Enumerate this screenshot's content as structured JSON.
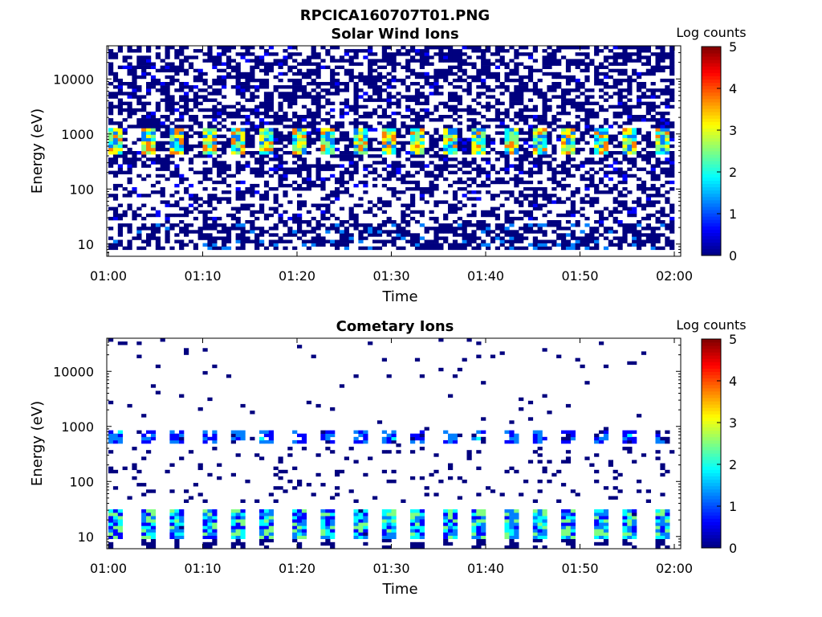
{
  "figure": {
    "title": "RPCICA160707T01.PNG"
  },
  "colormap": [
    "#00007f",
    "#0000ff",
    "#0080ff",
    "#00ffff",
    "#80ff80",
    "#ffff00",
    "#ff8000",
    "#ff0000",
    "#7f0000"
  ],
  "chart_data": [
    {
      "type": "heatmap",
      "title": "Solar Wind Ions",
      "xlabel": "Time",
      "ylabel": "Energy (eV)",
      "x_ticks": [
        "01:00",
        "01:10",
        "01:20",
        "01:30",
        "01:40",
        "01:50",
        "02:00"
      ],
      "x_range": [
        "01:00",
        "02:00"
      ],
      "y_ticks": [
        "10",
        "100",
        "1000",
        "10000"
      ],
      "y_scale": "log",
      "y_range": [
        6,
        40000
      ],
      "colorbar": {
        "label": "Log counts",
        "range": [
          0,
          5
        ],
        "ticks": [
          "0",
          "1",
          "2",
          "3",
          "4",
          "5"
        ]
      },
      "features": {
        "beam_energy_eV": [
          600,
          1200
        ],
        "beam_peak_log_counts": 3,
        "beam_period_min": 3.2,
        "background_log_counts": 0,
        "low_energy_band_eV": [
          8,
          25
        ]
      }
    },
    {
      "type": "heatmap",
      "title": "Cometary Ions",
      "xlabel": "Time",
      "ylabel": "Energy (eV)",
      "x_ticks": [
        "01:00",
        "01:10",
        "01:20",
        "01:30",
        "01:40",
        "01:50",
        "02:00"
      ],
      "x_range": [
        "01:00",
        "02:00"
      ],
      "y_ticks": [
        "10",
        "100",
        "1000",
        "10000"
      ],
      "y_scale": "log",
      "y_range": [
        6,
        40000
      ],
      "colorbar": {
        "label": "Log counts",
        "range": [
          0,
          5
        ],
        "ticks": [
          "0",
          "1",
          "2",
          "3",
          "4",
          "5"
        ]
      },
      "features": {
        "band_low_energy_eV": [
          9,
          30
        ],
        "band_low_peak_log_counts": 2.5,
        "band_mid_energy_eV": [
          500,
          800
        ],
        "band_mid_peak_log_counts": 1.5,
        "period_min": 3.2,
        "background_log_counts": 0
      }
    }
  ]
}
